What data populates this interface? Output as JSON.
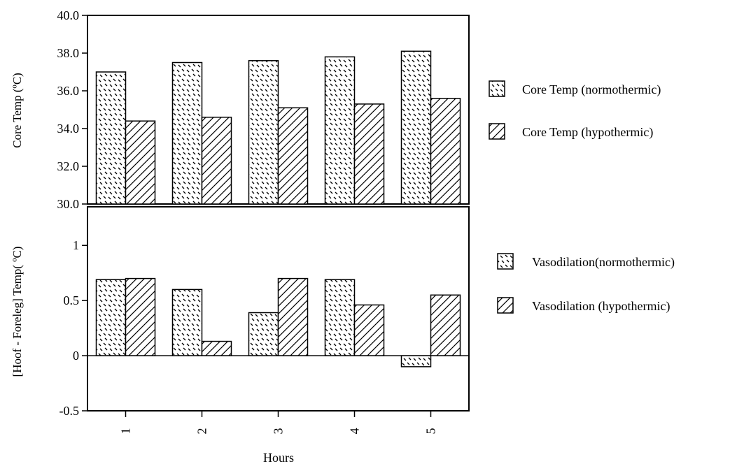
{
  "chart_data": [
    {
      "type": "bar",
      "ylabel": "Core Temp (ºC)",
      "ylim": [
        30.0,
        40.0
      ],
      "yticks": [
        "40.0",
        "38.0",
        "36.0",
        "34.0",
        "32.0",
        "30.0"
      ],
      "categories": [
        "1",
        "2",
        "3",
        "4",
        "5"
      ],
      "series": [
        {
          "name": "Core Temp (normothermic)",
          "values": [
            37.0,
            37.5,
            37.6,
            37.8,
            38.1
          ]
        },
        {
          "name": "Core Temp (hypothermic)",
          "values": [
            34.4,
            34.6,
            35.1,
            35.3,
            35.6
          ]
        }
      ],
      "legend_position": "right"
    },
    {
      "type": "bar",
      "ylabel": "[Hoof - Foreleg] Temp( ºC)",
      "xlabel": "Hours",
      "ylim": [
        -0.5,
        1.35
      ],
      "yticks": [
        "1",
        "0.5",
        "0",
        "-0.5"
      ],
      "categories": [
        "1",
        "2",
        "3",
        "4",
        "5"
      ],
      "series": [
        {
          "name": "Vasodilation(normothermic)",
          "values": [
            0.69,
            0.6,
            0.39,
            0.69,
            -0.1
          ]
        },
        {
          "name": "Vasodilation  (hypothermic)",
          "values": [
            0.7,
            0.13,
            0.7,
            0.46,
            0.55
          ]
        }
      ],
      "legend_position": "right"
    }
  ],
  "colors": {
    "stroke": "#000000",
    "background": "#ffffff"
  }
}
